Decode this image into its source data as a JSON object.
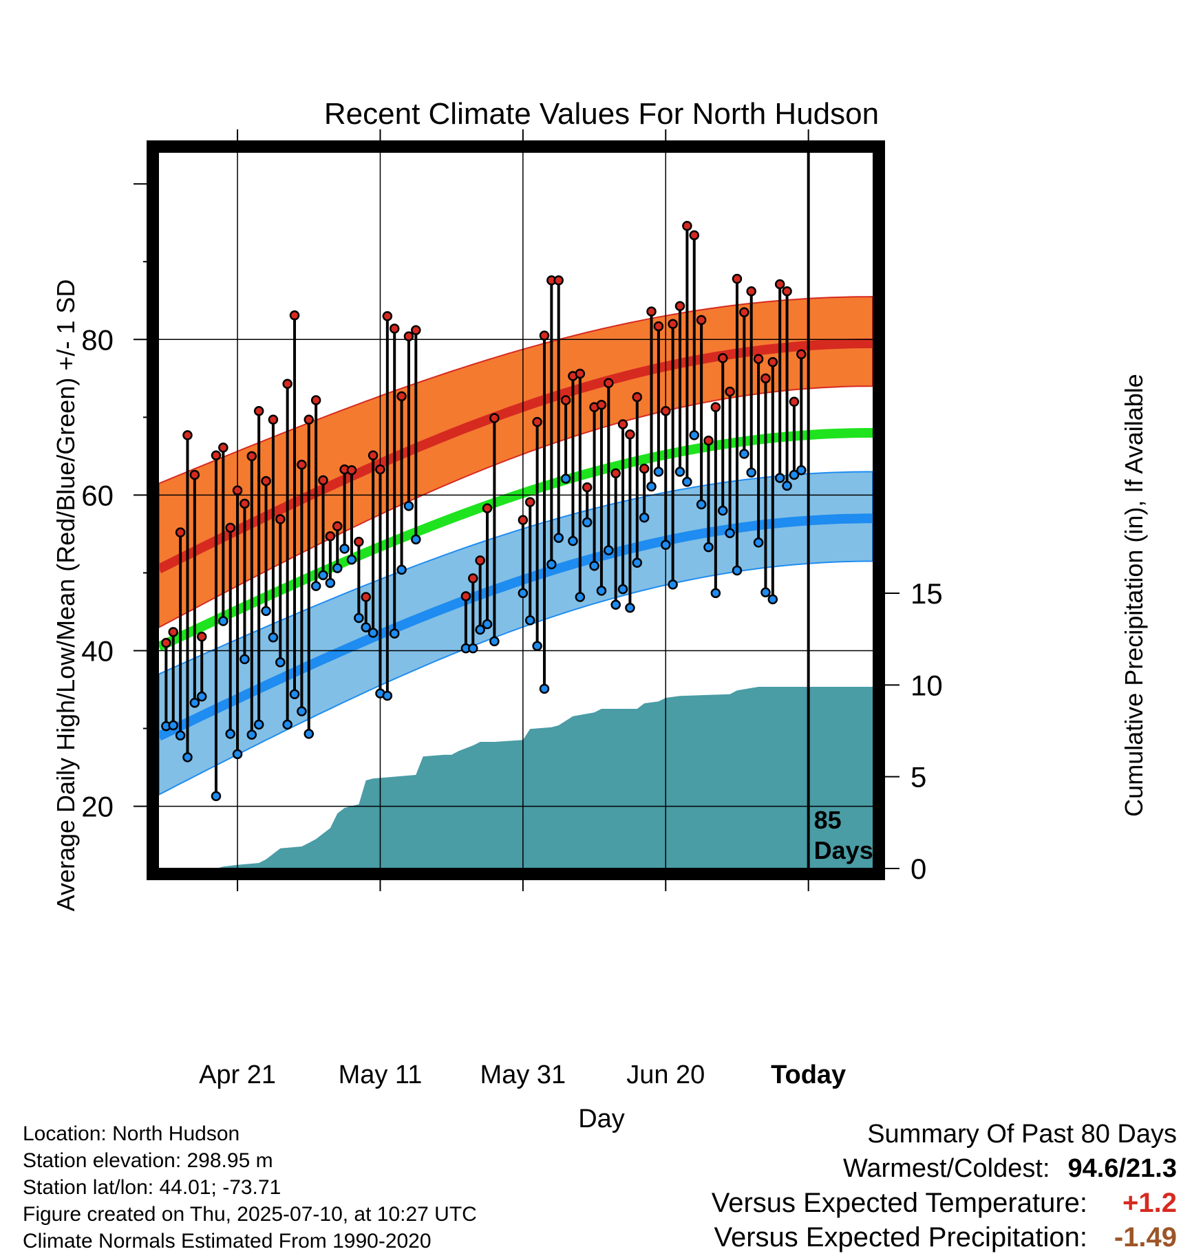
{
  "chart_data": {
    "type": "line",
    "title": "Recent Climate Values For North Hudson",
    "xlabel": "Day",
    "ylabel_left": "Average Daily High/Low/Mean (Red/Blue/Green) +/- 1 SD",
    "ylabel_right": "Cumulative Precipitation (in), If Available",
    "x_tick_labels": [
      "Apr 21",
      "May 11",
      "May 31",
      "Jun 20",
      "Today"
    ],
    "today_label": "85\nDays",
    "left_axis": {
      "range": [
        12,
        104
      ],
      "ticks": [
        20,
        40,
        60,
        80
      ]
    },
    "right_axis": {
      "range": [
        0,
        39
      ],
      "ticks": [
        0,
        5,
        10,
        15
      ]
    },
    "x_range_days": [
      -91,
      9
    ],
    "grid": true,
    "normals": {
      "high_mean": {
        "start": 50.5,
        "end": 79.5
      },
      "high_upper": {
        "start": 61.5,
        "end": 85.5
      },
      "high_lower": {
        "start": 43.0,
        "end": 74.0
      },
      "mean": {
        "start": 40.5,
        "end": 68.0
      },
      "low_mean": {
        "start": 29.0,
        "end": 57.0
      },
      "low_upper": {
        "start": 37.0,
        "end": 63.0
      },
      "low_lower": {
        "start": 21.5,
        "end": 51.5
      },
      "colors": {
        "high_band": "#f47a30",
        "high_line": "#d62a20",
        "mean_line": "#1ee31e",
        "low_band": "#82bfe6",
        "low_line": "#1e8cf0"
      }
    },
    "series": [
      {
        "name": "High",
        "color": "#d62a20"
      },
      {
        "name": "Low",
        "color": "#1e8cf0"
      }
    ],
    "daily": [
      {
        "day": -90,
        "high": 41.0,
        "low": 30.3
      },
      {
        "day": -89,
        "high": 42.4,
        "low": 30.4
      },
      {
        "day": -88,
        "high": 55.2,
        "low": 29.1
      },
      {
        "day": -87,
        "high": 67.7,
        "low": 26.3
      },
      {
        "day": -86,
        "high": 62.6,
        "low": 33.3
      },
      {
        "day": -85,
        "high": 41.8,
        "low": 34.1
      },
      {
        "day": -83,
        "high": 65.1,
        "low": 21.3
      },
      {
        "day": -82,
        "high": 66.1,
        "low": 43.8
      },
      {
        "day": -81,
        "high": 55.8,
        "low": 29.3
      },
      {
        "day": -80,
        "high": 60.6,
        "low": 26.7
      },
      {
        "day": -79,
        "high": 58.9,
        "low": 38.9
      },
      {
        "day": -78,
        "high": 65.0,
        "low": 29.2
      },
      {
        "day": -77,
        "high": 70.8,
        "low": 30.5
      },
      {
        "day": -76,
        "high": 61.8,
        "low": 45.1
      },
      {
        "day": -75,
        "high": 69.7,
        "low": 41.7
      },
      {
        "day": -74,
        "high": 56.9,
        "low": 38.5
      },
      {
        "day": -73,
        "high": 74.3,
        "low": 30.5
      },
      {
        "day": -72,
        "high": 83.1,
        "low": 34.4
      },
      {
        "day": -71,
        "high": 63.9,
        "low": 32.2
      },
      {
        "day": -70,
        "high": 69.7,
        "low": 29.3
      },
      {
        "day": -69,
        "high": 72.2,
        "low": 48.3
      },
      {
        "day": -68,
        "high": 61.9,
        "low": 49.7
      },
      {
        "day": -67,
        "high": 54.7,
        "low": 48.7
      },
      {
        "day": -66,
        "high": 56.0,
        "low": 50.6
      },
      {
        "day": -65,
        "high": 63.3,
        "low": 53.1
      },
      {
        "day": -64,
        "high": 63.2,
        "low": 51.7
      },
      {
        "day": -63,
        "high": 54.0,
        "low": 44.2
      },
      {
        "day": -62,
        "high": 46.9,
        "low": 43.0
      },
      {
        "day": -61,
        "high": 65.1,
        "low": 42.3
      },
      {
        "day": -60,
        "high": 63.3,
        "low": 34.5
      },
      {
        "day": -59,
        "high": 83.0,
        "low": 34.2
      },
      {
        "day": -58,
        "high": 81.4,
        "low": 42.2
      },
      {
        "day": -57,
        "high": 72.7,
        "low": 50.4
      },
      {
        "day": -56,
        "high": 80.4,
        "low": 58.6
      },
      {
        "day": -55,
        "high": 81.2,
        "low": 54.3
      },
      {
        "day": -48,
        "high": 47.0,
        "low": 40.3
      },
      {
        "day": -47,
        "high": 49.3,
        "low": 40.3
      },
      {
        "day": -46,
        "high": 51.6,
        "low": 42.7
      },
      {
        "day": -45,
        "high": 58.3,
        "low": 43.4
      },
      {
        "day": -44,
        "high": 69.9,
        "low": 41.2
      },
      {
        "day": -40,
        "high": 56.8,
        "low": 47.4
      },
      {
        "day": -39,
        "high": 59.1,
        "low": 43.9
      },
      {
        "day": -38,
        "high": 69.4,
        "low": 40.6
      },
      {
        "day": -37,
        "high": 80.5,
        "low": 35.1
      },
      {
        "day": -36,
        "high": 87.6,
        "low": 51.1
      },
      {
        "day": -35,
        "high": 87.6,
        "low": 54.5
      },
      {
        "day": -34,
        "high": 72.2,
        "low": 62.1
      },
      {
        "day": -33,
        "high": 75.3,
        "low": 54.1
      },
      {
        "day": -32,
        "high": 75.6,
        "low": 46.9
      },
      {
        "day": -31,
        "high": 61.0,
        "low": 56.5
      },
      {
        "day": -30,
        "high": 71.3,
        "low": 50.9
      },
      {
        "day": -29,
        "high": 71.6,
        "low": 47.7
      },
      {
        "day": -28,
        "high": 74.4,
        "low": 52.9
      },
      {
        "day": -27,
        "high": 62.8,
        "low": 45.9
      },
      {
        "day": -26,
        "high": 69.1,
        "low": 47.9
      },
      {
        "day": -25,
        "high": 67.8,
        "low": 45.5
      },
      {
        "day": -24,
        "high": 72.6,
        "low": 51.3
      },
      {
        "day": -23,
        "high": 63.4,
        "low": 57.1
      },
      {
        "day": -22,
        "high": 83.6,
        "low": 61.1
      },
      {
        "day": -21,
        "high": 81.7,
        "low": 63.0
      },
      {
        "day": -20,
        "high": 70.8,
        "low": 53.6
      },
      {
        "day": -19,
        "high": 82.0,
        "low": 48.5
      },
      {
        "day": -18,
        "high": 84.3,
        "low": 63.0
      },
      {
        "day": -17,
        "high": 94.6,
        "low": 61.7
      },
      {
        "day": -16,
        "high": 93.4,
        "low": 67.7
      },
      {
        "day": -15,
        "high": 82.5,
        "low": 58.8
      },
      {
        "day": -14,
        "high": 67.0,
        "low": 53.3
      },
      {
        "day": -13,
        "high": 71.3,
        "low": 47.4
      },
      {
        "day": -12,
        "high": 77.6,
        "low": 58.0
      },
      {
        "day": -11,
        "high": 73.3,
        "low": 55.1
      },
      {
        "day": -10,
        "high": 87.8,
        "low": 50.3
      },
      {
        "day": -9,
        "high": 83.5,
        "low": 65.3
      },
      {
        "day": -8,
        "high": 86.2,
        "low": 62.9
      },
      {
        "day": -7,
        "high": 77.5,
        "low": 53.9
      },
      {
        "day": -6,
        "high": 75.0,
        "low": 47.5
      },
      {
        "day": -5,
        "high": 77.1,
        "low": 46.6
      },
      {
        "day": -4,
        "high": 87.1,
        "low": 62.2
      },
      {
        "day": -3,
        "high": 86.2,
        "low": 61.2
      },
      {
        "day": -2,
        "high": 72.0,
        "low": 62.6
      },
      {
        "day": -1,
        "high": 78.1,
        "low": 63.2
      }
    ],
    "precip_cumulative": [
      {
        "day": -91,
        "in": 0
      },
      {
        "day": -83,
        "in": 0
      },
      {
        "day": -82,
        "in": 0.1
      },
      {
        "day": -80,
        "in": 0.2
      },
      {
        "day": -77,
        "in": 0.3
      },
      {
        "day": -76,
        "in": 0.5
      },
      {
        "day": -74,
        "in": 1.1
      },
      {
        "day": -71,
        "in": 1.2
      },
      {
        "day": -70,
        "in": 1.4
      },
      {
        "day": -69,
        "in": 1.6
      },
      {
        "day": -68,
        "in": 1.9
      },
      {
        "day": -67,
        "in": 2.2
      },
      {
        "day": -66,
        "in": 3.0
      },
      {
        "day": -65,
        "in": 3.3
      },
      {
        "day": -64,
        "in": 3.4
      },
      {
        "day": -63,
        "in": 3.5
      },
      {
        "day": -62,
        "in": 4.8
      },
      {
        "day": -61,
        "in": 4.9
      },
      {
        "day": -55,
        "in": 5.1
      },
      {
        "day": -54,
        "in": 6.1
      },
      {
        "day": -51,
        "in": 6.2
      },
      {
        "day": -50,
        "in": 6.2
      },
      {
        "day": -49,
        "in": 6.4
      },
      {
        "day": -47,
        "in": 6.7
      },
      {
        "day": -46,
        "in": 6.9
      },
      {
        "day": -44,
        "in": 6.9
      },
      {
        "day": -40,
        "in": 7.0
      },
      {
        "day": -39,
        "in": 7.6
      },
      {
        "day": -36,
        "in": 7.7
      },
      {
        "day": -35,
        "in": 7.8
      },
      {
        "day": -33,
        "in": 8.3
      },
      {
        "day": -30,
        "in": 8.5
      },
      {
        "day": -29,
        "in": 8.7
      },
      {
        "day": -24,
        "in": 8.7
      },
      {
        "day": -23,
        "in": 9.0
      },
      {
        "day": -21,
        "in": 9.1
      },
      {
        "day": -20,
        "in": 9.3
      },
      {
        "day": -18,
        "in": 9.4
      },
      {
        "day": -11,
        "in": 9.5
      },
      {
        "day": -10,
        "in": 9.7
      },
      {
        "day": -7,
        "in": 9.9
      },
      {
        "day": 0,
        "in": 9.9
      },
      {
        "day": 9,
        "in": 9.9
      }
    ]
  },
  "info": {
    "location": "Location: North Hudson",
    "elevation": "Station elevation: 298.95 m",
    "latlon": "Station lat/lon: 44.01; -73.71",
    "created": "Figure created on Thu, 2025-07-10, at 10:27 UTC",
    "normals": "Climate Normals Estimated From 1990-2020"
  },
  "summary": {
    "heading": "Summary Of Past 80 Days",
    "warm_cold_label": "Warmest/Coldest:",
    "warm_cold_value": "94.6/21.3",
    "temp_label": "Versus Expected Temperature:",
    "temp_value": "+1.2",
    "temp_color": "#d62a20",
    "precip_label": "Versus Expected Precipitation:",
    "precip_value": "-1.49",
    "precip_color": "#9c5528"
  }
}
